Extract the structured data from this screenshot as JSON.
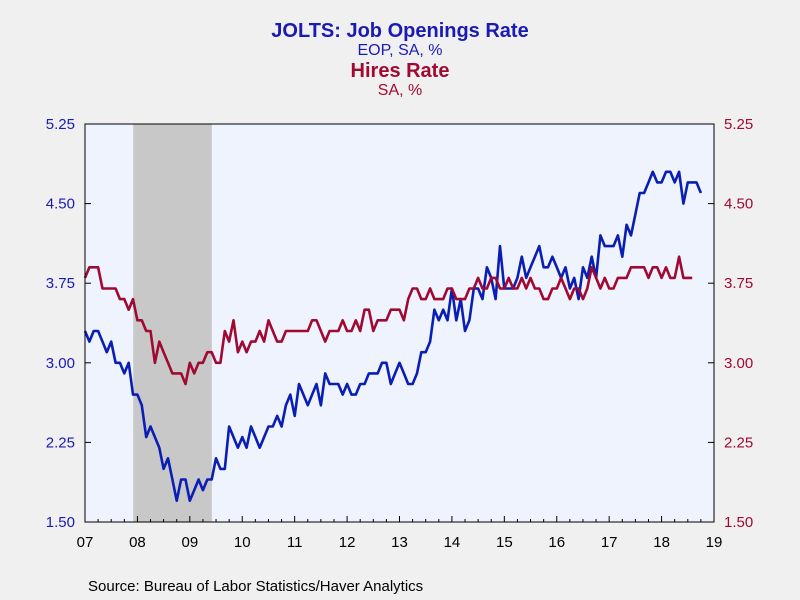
{
  "header": {
    "title1": "JOLTS: Job Openings Rate",
    "subtitle1": "EOP, SA, %",
    "title2": "Hires Rate",
    "subtitle2": "SA, %"
  },
  "footer": {
    "source": "Source:  Bureau of Labor Statistics/Haver Analytics"
  },
  "chart_data": {
    "type": "line",
    "x_tick_labels": [
      "07",
      "08",
      "09",
      "10",
      "11",
      "12",
      "13",
      "14",
      "15",
      "16",
      "17",
      "18",
      "19"
    ],
    "y_tick_labels": [
      "1.50",
      "2.25",
      "3.00",
      "3.75",
      "4.50",
      "5.25"
    ],
    "ylim": [
      1.5,
      5.25
    ],
    "xlim": [
      2007.0,
      2019.0
    ],
    "grid": false,
    "recession": [
      2007.92,
      2009.42
    ],
    "colors": {
      "series1": "#0a1eb4",
      "series2": "#a00a32",
      "recession": "#c8c8c8",
      "plot_bg": "#eef3fd"
    },
    "series": [
      {
        "name": "JOLTS: Job Openings Rate",
        "axis": "left",
        "start_year": 2007.0,
        "step_months": 1,
        "values": [
          3.3,
          3.2,
          3.3,
          3.3,
          3.2,
          3.1,
          3.2,
          3.0,
          3.0,
          2.9,
          3.0,
          2.7,
          2.7,
          2.6,
          2.3,
          2.4,
          2.3,
          2.2,
          2.0,
          2.1,
          1.9,
          1.7,
          1.9,
          1.9,
          1.7,
          1.8,
          1.9,
          1.8,
          1.9,
          1.9,
          2.1,
          2.0,
          2.0,
          2.4,
          2.3,
          2.2,
          2.3,
          2.2,
          2.4,
          2.3,
          2.2,
          2.3,
          2.4,
          2.4,
          2.5,
          2.4,
          2.6,
          2.7,
          2.5,
          2.8,
          2.7,
          2.6,
          2.7,
          2.8,
          2.6,
          2.9,
          2.8,
          2.8,
          2.8,
          2.7,
          2.8,
          2.7,
          2.7,
          2.8,
          2.8,
          2.9,
          2.9,
          2.9,
          3.0,
          3.0,
          2.8,
          2.9,
          3.0,
          2.9,
          2.8,
          2.8,
          2.9,
          3.1,
          3.1,
          3.2,
          3.5,
          3.4,
          3.5,
          3.4,
          3.7,
          3.4,
          3.6,
          3.3,
          3.4,
          3.7,
          3.7,
          3.6,
          3.9,
          3.8,
          3.6,
          4.1,
          3.7,
          3.7,
          3.7,
          3.8,
          4.0,
          3.8,
          3.9,
          4.0,
          4.1,
          3.9,
          3.9,
          4.0,
          3.9,
          3.8,
          3.9,
          3.7,
          3.8,
          3.6,
          3.9,
          3.8,
          4.0,
          3.8,
          4.2,
          4.1,
          4.1,
          4.1,
          4.2,
          4.0,
          4.3,
          4.2,
          4.4,
          4.6,
          4.6,
          4.7,
          4.8,
          4.7,
          4.7,
          4.8,
          4.8,
          4.7,
          4.8,
          4.5,
          4.7,
          4.7,
          4.7,
          4.6
        ]
      },
      {
        "name": "Hires Rate",
        "axis": "right",
        "start_year": 2007.0,
        "step_months": 1,
        "values": [
          3.8,
          3.9,
          3.9,
          3.9,
          3.7,
          3.7,
          3.7,
          3.7,
          3.6,
          3.6,
          3.5,
          3.6,
          3.4,
          3.4,
          3.3,
          3.3,
          3.0,
          3.2,
          3.1,
          3.0,
          2.9,
          2.9,
          2.9,
          2.8,
          3.0,
          2.9,
          3.0,
          3.0,
          3.1,
          3.1,
          3.0,
          3.0,
          3.3,
          3.2,
          3.4,
          3.1,
          3.2,
          3.1,
          3.2,
          3.2,
          3.3,
          3.2,
          3.4,
          3.3,
          3.2,
          3.2,
          3.3,
          3.3,
          3.3,
          3.3,
          3.3,
          3.3,
          3.4,
          3.4,
          3.3,
          3.2,
          3.3,
          3.3,
          3.3,
          3.4,
          3.3,
          3.3,
          3.4,
          3.3,
          3.5,
          3.5,
          3.3,
          3.4,
          3.4,
          3.4,
          3.5,
          3.5,
          3.5,
          3.4,
          3.6,
          3.7,
          3.7,
          3.6,
          3.6,
          3.7,
          3.6,
          3.6,
          3.6,
          3.7,
          3.7,
          3.6,
          3.6,
          3.6,
          3.7,
          3.7,
          3.8,
          3.7,
          3.7,
          3.8,
          3.8,
          3.7,
          3.7,
          3.8,
          3.7,
          3.7,
          3.8,
          3.7,
          3.8,
          3.7,
          3.7,
          3.6,
          3.6,
          3.7,
          3.7,
          3.8,
          3.7,
          3.6,
          3.7,
          3.7,
          3.6,
          3.7,
          3.9,
          3.8,
          3.7,
          3.8,
          3.7,
          3.7,
          3.8,
          3.8,
          3.8,
          3.9,
          3.9,
          3.9,
          3.9,
          3.8,
          3.9,
          3.9,
          3.8,
          3.9,
          3.8,
          3.8,
          4.0,
          3.8,
          3.8,
          3.8
        ]
      }
    ]
  }
}
